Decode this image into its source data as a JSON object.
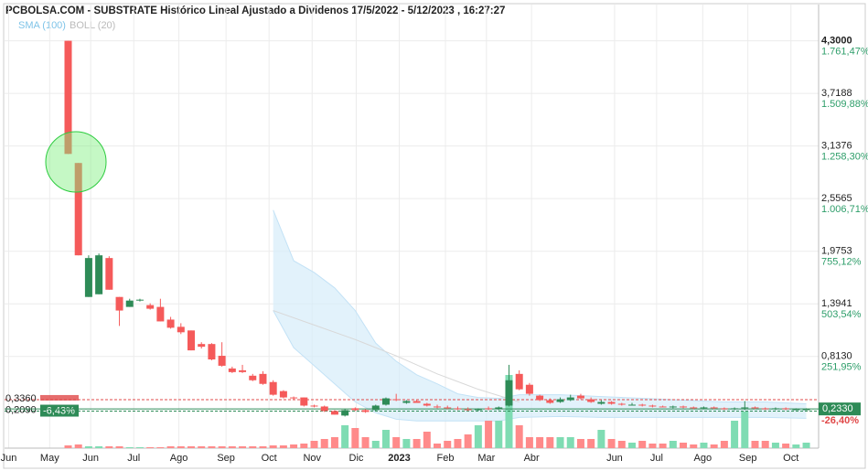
{
  "chart_data": {
    "type": "candlestick",
    "title": "PCBOLSA.COM - SUBSTRATE Histórico Lineal Ajustado a Dividenos 17/5/2022 - 5/12/2023 , 16:27:27",
    "legend": [
      "SMA (100)",
      "BOLL (20)"
    ],
    "up_color": "#2e8b57",
    "down_color": "#f55a5a",
    "volume_up_color": "#7fdcb3",
    "volume_down_color": "#ff8a8a",
    "grid": true,
    "xlim": [
      -6.2,
      73.2
    ],
    "xticks": [
      {
        "value": -5.8,
        "label": "Jun"
      },
      {
        "value": -1.8,
        "label": "May"
      },
      {
        "value": 2.2,
        "label": "Jun"
      },
      {
        "value": 6.4,
        "label": "Jul"
      },
      {
        "value": 10.8,
        "label": "Ago"
      },
      {
        "value": 15.4,
        "label": "Sep"
      },
      {
        "value": 19.6,
        "label": "Oct"
      },
      {
        "value": 23.8,
        "label": "Nov"
      },
      {
        "value": 28.1,
        "label": "Dic"
      },
      {
        "value": 32.3,
        "label": "2023"
      },
      {
        "value": 36.8,
        "label": "Feb"
      },
      {
        "value": 40.8,
        "label": "Mar"
      },
      {
        "value": 45.2,
        "label": "Abr"
      },
      {
        "value": 53.3,
        "label": "Jun"
      },
      {
        "value": 57.4,
        "label": "Jul"
      },
      {
        "value": 61.9,
        "label": "Ago"
      },
      {
        "value": 66.3,
        "label": "Sep"
      },
      {
        "value": 70.5,
        "label": "Oct"
      }
    ],
    "ylim": [
      -0.2,
      4.7
    ],
    "yticks": [
      {
        "value": 4.3,
        "label": "4,3000"
      },
      {
        "value": 3.7188,
        "label": "3,7188"
      },
      {
        "value": 3.1376,
        "label": "3,1376"
      },
      {
        "value": 2.5565,
        "label": "2,5565"
      },
      {
        "value": 1.9753,
        "label": "1,9753"
      },
      {
        "value": 1.3941,
        "label": "1,3941"
      },
      {
        "value": 0.813,
        "label": "0,8130"
      }
    ],
    "ytick_changes": [
      "1.761,47%",
      "1.509,88%",
      "1.258,30%",
      "1.006,71%",
      "755,12%",
      "503,54%",
      "251,95%"
    ],
    "y2lim": [
      0,
      100
    ],
    "x": [
      0,
      1,
      2,
      3,
      4,
      5,
      6,
      7,
      8,
      9,
      10,
      11,
      12,
      13,
      14,
      15,
      16,
      17,
      18,
      19,
      20,
      21,
      22,
      23,
      24,
      25,
      26,
      27,
      28,
      29,
      30,
      31,
      32,
      33,
      34,
      35,
      36,
      37,
      38,
      39,
      40,
      41,
      42,
      43,
      44,
      45,
      46,
      47,
      48,
      49,
      50,
      51,
      52,
      53,
      54,
      55,
      56,
      57,
      58,
      59,
      60,
      61,
      62,
      63,
      64,
      65,
      66,
      67,
      68,
      69,
      70,
      71,
      72
    ],
    "open": [
      4.3,
      2.95,
      1.47,
      1.5,
      1.9,
      1.47,
      1.36,
      1.43,
      1.38,
      1.36,
      1.22,
      1.14,
      1.1,
      0.95,
      0.95,
      0.82,
      0.68,
      0.66,
      0.6,
      0.62,
      0.53,
      0.43,
      0.36,
      0.36,
      0.27,
      0.26,
      0.21,
      0.16,
      0.24,
      0.22,
      0.22,
      0.28,
      0.34,
      0.3,
      0.32,
      0.29,
      0.26,
      0.25,
      0.24,
      0.23,
      0.22,
      0.24,
      0.23,
      0.27,
      0.62,
      0.5,
      0.38,
      0.33,
      0.31,
      0.33,
      0.38,
      0.34,
      0.29,
      0.31,
      0.29,
      0.28,
      0.28,
      0.27,
      0.26,
      0.25,
      0.26,
      0.25,
      0.24,
      0.25,
      0.24,
      0.23,
      0.24,
      0.25,
      0.24,
      0.23,
      0.24,
      0.23,
      0.23
    ],
    "high": [
      4.3,
      2.95,
      1.93,
      1.95,
      1.92,
      1.47,
      1.45,
      1.45,
      1.4,
      1.45,
      1.25,
      1.18,
      1.1,
      0.97,
      0.96,
      0.97,
      0.7,
      0.72,
      0.62,
      0.65,
      0.55,
      0.44,
      0.37,
      0.36,
      0.28,
      0.27,
      0.22,
      0.23,
      0.25,
      0.23,
      0.28,
      0.36,
      0.4,
      0.33,
      0.34,
      0.3,
      0.28,
      0.27,
      0.26,
      0.25,
      0.24,
      0.26,
      0.26,
      0.72,
      0.66,
      0.52,
      0.39,
      0.35,
      0.36,
      0.39,
      0.4,
      0.36,
      0.33,
      0.32,
      0.3,
      0.3,
      0.29,
      0.28,
      0.27,
      0.27,
      0.27,
      0.26,
      0.26,
      0.26,
      0.25,
      0.25,
      0.32,
      0.26,
      0.25,
      0.25,
      0.25,
      0.24,
      0.24
    ],
    "low": [
      3.05,
      1.93,
      1.47,
      1.5,
      1.55,
      1.15,
      1.36,
      1.42,
      1.33,
      1.2,
      1.12,
      1.06,
      0.88,
      0.9,
      0.77,
      0.7,
      0.63,
      0.63,
      0.54,
      0.5,
      0.38,
      0.35,
      0.34,
      0.26,
      0.25,
      0.2,
      0.17,
      0.15,
      0.21,
      0.19,
      0.21,
      0.27,
      0.32,
      0.29,
      0.3,
      0.26,
      0.24,
      0.23,
      0.22,
      0.21,
      0.21,
      0.22,
      0.22,
      0.26,
      0.44,
      0.38,
      0.32,
      0.29,
      0.3,
      0.32,
      0.34,
      0.3,
      0.28,
      0.28,
      0.27,
      0.27,
      0.26,
      0.25,
      0.25,
      0.24,
      0.24,
      0.23,
      0.23,
      0.23,
      0.22,
      0.22,
      0.22,
      0.23,
      0.22,
      0.22,
      0.22,
      0.22,
      0.22
    ],
    "close": [
      3.05,
      1.93,
      1.9,
      1.93,
      1.55,
      1.32,
      1.43,
      1.44,
      1.34,
      1.2,
      1.13,
      1.08,
      0.88,
      0.92,
      0.78,
      0.71,
      0.64,
      0.64,
      0.55,
      0.51,
      0.39,
      0.36,
      0.35,
      0.27,
      0.26,
      0.21,
      0.17,
      0.22,
      0.22,
      0.2,
      0.27,
      0.35,
      0.33,
      0.32,
      0.3,
      0.27,
      0.25,
      0.24,
      0.23,
      0.22,
      0.23,
      0.23,
      0.25,
      0.55,
      0.45,
      0.4,
      0.33,
      0.3,
      0.34,
      0.36,
      0.35,
      0.31,
      0.31,
      0.29,
      0.28,
      0.28,
      0.27,
      0.26,
      0.25,
      0.26,
      0.25,
      0.24,
      0.25,
      0.24,
      0.23,
      0.24,
      0.25,
      0.24,
      0.23,
      0.24,
      0.23,
      0.23,
      0.23
    ],
    "volume": [
      3,
      4,
      2,
      2,
      2,
      2,
      1,
      1,
      1,
      1,
      2,
      2,
      2,
      2,
      2,
      2,
      2,
      2,
      2,
      2,
      3,
      3,
      4,
      5,
      8,
      10,
      12,
      25,
      22,
      12,
      8,
      20,
      12,
      10,
      10,
      18,
      5,
      8,
      10,
      15,
      25,
      30,
      30,
      80,
      25,
      12,
      12,
      12,
      12,
      12,
      10,
      10,
      20,
      10,
      8,
      6,
      8,
      5,
      5,
      8,
      6,
      4,
      6,
      4,
      8,
      30,
      40,
      8,
      8,
      6,
      5,
      4,
      6
    ],
    "bollinger": {
      "x": [
        20,
        22,
        24,
        26,
        28,
        30,
        32,
        34,
        36,
        38,
        40,
        42,
        44,
        48,
        52,
        56,
        60,
        64,
        68,
        72
      ],
      "upper": [
        2.43,
        1.87,
        1.74,
        1.57,
        1.32,
        0.96,
        0.76,
        0.61,
        0.51,
        0.4,
        0.36,
        0.35,
        0.39,
        0.39,
        0.37,
        0.35,
        0.33,
        0.31,
        0.31,
        0.29
      ],
      "lower": [
        1.32,
        0.91,
        0.71,
        0.51,
        0.31,
        0.19,
        0.12,
        0.1,
        0.1,
        0.1,
        0.1,
        0.1,
        0.14,
        0.15,
        0.14,
        0.14,
        0.14,
        0.14,
        0.14,
        0.13
      ]
    },
    "sma": {
      "x": [
        20,
        24,
        28,
        32,
        36,
        40,
        44
      ],
      "values": [
        1.32,
        1.16,
        1.0,
        0.82,
        0.62,
        0.45,
        0.31
      ]
    },
    "price_lines": [
      {
        "value": 0.336,
        "label": "0,3360",
        "color": "#e04848"
      },
      {
        "value": 0.209,
        "label": "0,2090",
        "change": "-6,43%",
        "color": "#2e8b57"
      }
    ],
    "last": {
      "value": 0.233,
      "label": "0,2330",
      "change": "-26,40%",
      "color": "#2e8b57",
      "change_color": "#e04848"
    }
  }
}
